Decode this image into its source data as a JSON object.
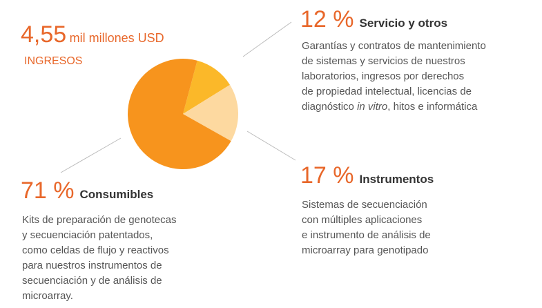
{
  "chart_data": {
    "type": "pie",
    "total": "4,55",
    "total_unit": "mil millones USD",
    "total_caption": "INGRESOS",
    "categories": [
      "Servicio y otros",
      "Instrumentos",
      "Consumibles"
    ],
    "values": [
      12,
      17,
      71
    ],
    "value_labels": [
      "12 %",
      "17 %",
      "71 %"
    ],
    "colors": [
      "#fbb829",
      "#fdd9a0",
      "#f7941d"
    ],
    "descriptions": [
      [
        "Garantías y contratos de mantenimiento",
        "de sistemas y servicios de nuestros",
        "laboratorios, ingresos por derechos",
        "de propiedad intelectual, licencias de",
        [
          "diagnóstico ",
          "in vitro",
          ", hitos e informática"
        ]
      ],
      [
        "Sistemas de secuenciación",
        "con múltiples aplicaciones",
        "e instrumento de análisis de",
        "microarray para genotipado"
      ],
      [
        "Kits de preparación de genotecas",
        "y secuenciación patentados,",
        "como celdas de flujo y reactivos",
        "para nuestros instrumentos de",
        "secuenciación y de análisis de",
        "microarray."
      ]
    ]
  }
}
